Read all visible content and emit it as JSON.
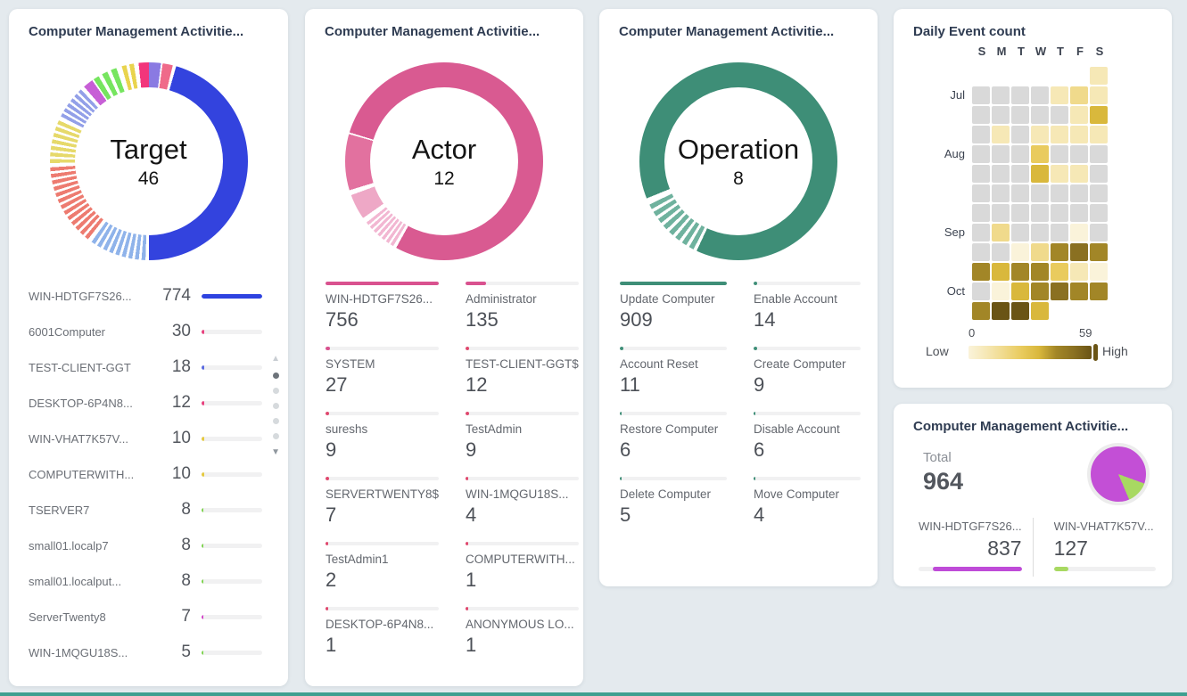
{
  "chart_data": [
    {
      "type": "pie",
      "title": "Computer Management Activitie...",
      "center_label": "Target",
      "distinct_count": 46,
      "categories": [
        "WIN-HDTGF7S26...",
        "6001Computer",
        "TEST-CLIENT-GGT",
        "DESKTOP-6P4N8...",
        "WIN-VHAT7K57V...",
        "COMPUTERWITH...",
        "TSERVER7",
        "small01.localp7",
        "small01.localput...",
        "ServerTwenty8",
        "WIN-1MQGU18S..."
      ],
      "values": [
        774,
        30,
        18,
        12,
        10,
        10,
        8,
        8,
        8,
        7,
        5
      ]
    },
    {
      "type": "pie",
      "title": "Computer Management Activitie...",
      "center_label": "Actor",
      "distinct_count": 12,
      "categories": [
        "WIN-HDTGF7S26...",
        "Administrator",
        "SYSTEM",
        "TEST-CLIENT-GGT$",
        "sureshs",
        "TestAdmin",
        "SERVERTWENTY8$",
        "WIN-1MQGU18S...",
        "TestAdmin1",
        "COMPUTERWITH...",
        "DESKTOP-6P4N8...",
        "ANONYMOUS LO..."
      ],
      "values": [
        756,
        135,
        27,
        12,
        9,
        9,
        7,
        4,
        2,
        1,
        1,
        1
      ]
    },
    {
      "type": "pie",
      "title": "Computer Management Activitie...",
      "center_label": "Operation",
      "distinct_count": 8,
      "categories": [
        "Update Computer",
        "Enable Account",
        "Account Reset",
        "Create Computer",
        "Restore Computer",
        "Disable Account",
        "Delete Computer",
        "Move Computer"
      ],
      "values": [
        909,
        14,
        11,
        9,
        6,
        6,
        5,
        4
      ]
    },
    {
      "type": "heatmap",
      "title": "Daily Event count",
      "x_labels": [
        "S",
        "M",
        "T",
        "W",
        "T",
        "F",
        "S"
      ],
      "y_labels": [
        "Jul",
        "Aug",
        "Sep",
        "Oct"
      ],
      "value_range": [
        0,
        59
      ],
      "legend": [
        "Low",
        "High"
      ],
      "grid": [
        [
          null,
          null,
          null,
          null,
          null,
          null,
          6
        ],
        [
          0,
          0,
          0,
          0,
          6,
          12,
          6
        ],
        [
          0,
          0,
          0,
          0,
          0,
          6,
          28
        ],
        [
          0,
          7,
          0,
          6,
          6,
          6,
          6
        ],
        [
          0,
          0,
          0,
          24,
          0,
          0,
          0
        ],
        [
          0,
          0,
          0,
          32,
          7,
          6,
          0
        ],
        [
          0,
          0,
          0,
          0,
          0,
          0,
          0
        ],
        [
          0,
          0,
          0,
          0,
          0,
          0,
          0
        ],
        [
          0,
          12,
          0,
          0,
          0,
          2,
          0
        ],
        [
          0,
          0,
          3,
          10,
          42,
          50,
          44
        ],
        [
          44,
          32,
          44,
          44,
          24,
          6,
          3
        ],
        [
          0,
          3,
          32,
          46,
          52,
          45,
          44
        ],
        [
          45,
          56,
          59,
          32,
          null,
          null,
          null
        ]
      ]
    },
    {
      "type": "pie",
      "title": "Computer Management Activitie...",
      "total": 964,
      "categories": [
        "WIN-HDTGF7S26...",
        "WIN-VHAT7K57V..."
      ],
      "values": [
        837,
        127
      ]
    }
  ],
  "theme": {
    "bg": "#e4eaee",
    "card": "#ffffff",
    "title_color": "#2f3c52",
    "accent_strip": "#3f9f90"
  },
  "cards": {
    "target": {
      "title": "Computer Management Activitie...",
      "donut": {
        "label": "Target",
        "count": "46",
        "bands": [
          {
            "from": 0,
            "to": 7,
            "color": "#8a7ae2"
          },
          {
            "from": 8,
            "to": 14,
            "color": "#ef6a8a"
          },
          {
            "from": 16,
            "to": 180,
            "color": "#3343de"
          },
          {
            "from": 182,
            "to": 217,
            "color": "#8fb3ea",
            "stripes": 9
          },
          {
            "from": 218,
            "to": 268,
            "color": "#ed7b70",
            "stripes": 13
          },
          {
            "from": 269,
            "to": 296,
            "color": "#e6d96a",
            "stripes": 7
          },
          {
            "from": 297,
            "to": 318,
            "color": "#93a0e8",
            "stripes": 6
          },
          {
            "from": 319,
            "to": 325,
            "color": "#c75fd6"
          },
          {
            "from": 326,
            "to": 343,
            "color": "#76e55f",
            "stripes": 3
          },
          {
            "from": 344,
            "to": 353,
            "color": "#e9d44e",
            "stripes": 2
          },
          {
            "from": 354,
            "to": 360,
            "color": "#f2357b"
          }
        ]
      },
      "rows": [
        {
          "label": "WIN-HDTGF7S26...",
          "value": "774",
          "pct": 100,
          "color": "#2e43e0"
        },
        {
          "label": "6001Computer",
          "value": "30",
          "pct": 5,
          "color": "#e8417e"
        },
        {
          "label": "TEST-CLIENT-GGT",
          "value": "18",
          "pct": 4,
          "color": "#5a6ae0"
        },
        {
          "label": "DESKTOP-6P4N8...",
          "value": "12",
          "pct": 4,
          "color": "#e8417e"
        },
        {
          "label": "WIN-VHAT7K57V...",
          "value": "10",
          "pct": 4,
          "color": "#e5c93f"
        },
        {
          "label": "COMPUTERWITH...",
          "value": "10",
          "pct": 4,
          "color": "#e5c93f"
        },
        {
          "label": "TSERVER7",
          "value": "8",
          "pct": 3,
          "color": "#7ed34f"
        },
        {
          "label": "small01.localp7",
          "value": "8",
          "pct": 3,
          "color": "#7ed34f"
        },
        {
          "label": "small01.localput...",
          "value": "8",
          "pct": 3,
          "color": "#7ed34f"
        },
        {
          "label": "ServerTwenty8",
          "value": "7",
          "pct": 3,
          "color": "#d343c8"
        },
        {
          "label": "WIN-1MQGU18S...",
          "value": "5",
          "pct": 3,
          "color": "#7ed34f"
        }
      ],
      "pager": {
        "dots": 5,
        "active": 0,
        "up": "▲",
        "down": "▼"
      }
    },
    "actor": {
      "title": "Computer Management Activitie...",
      "donut": {
        "label": "Actor",
        "count": "12",
        "bands": [
          {
            "from": 0,
            "to": 209,
            "color": "#d95a91"
          },
          {
            "from": 211,
            "to": 233,
            "color": "#f2b7d2",
            "stripes": 7
          },
          {
            "from": 235,
            "to": 250,
            "color": "#eea8c6"
          },
          {
            "from": 253,
            "to": 286,
            "color": "#e2719f"
          },
          {
            "from": 287,
            "to": 360,
            "color": "#d95a91"
          }
        ]
      },
      "items": [
        {
          "label": "WIN-HDTGF7S26...",
          "value": "756",
          "pct": 100,
          "color": "#d9528f"
        },
        {
          "label": "Administrator",
          "value": "135",
          "pct": 18,
          "color": "#d9528f"
        },
        {
          "label": "SYSTEM",
          "value": "27",
          "pct": 4,
          "color": "#d9528f"
        },
        {
          "label": "TEST-CLIENT-GGT$",
          "value": "12",
          "pct": 3,
          "color": "#e0476d"
        },
        {
          "label": "sureshs",
          "value": "9",
          "pct": 3,
          "color": "#e0476d"
        },
        {
          "label": "TestAdmin",
          "value": "9",
          "pct": 3,
          "color": "#e0476d"
        },
        {
          "label": "SERVERTWENTY8$",
          "value": "7",
          "pct": 3,
          "color": "#e0476d"
        },
        {
          "label": "WIN-1MQGU18S...",
          "value": "4",
          "pct": 2,
          "color": "#e0476d"
        },
        {
          "label": "TestAdmin1",
          "value": "2",
          "pct": 2,
          "color": "#e0476d"
        },
        {
          "label": "COMPUTERWITH...",
          "value": "1",
          "pct": 2,
          "color": "#e0476d"
        },
        {
          "label": "DESKTOP-6P4N8...",
          "value": "1",
          "pct": 2,
          "color": "#e0476d"
        },
        {
          "label": "ANONYMOUS LO...",
          "value": "1",
          "pct": 2,
          "color": "#e0476d"
        }
      ]
    },
    "operation": {
      "title": "Computer Management Activitie...",
      "donut": {
        "label": "Operation",
        "count": "8",
        "bands": [
          {
            "from": 0,
            "to": 205,
            "color": "#3e8e77"
          },
          {
            "from": 207,
            "to": 246,
            "color": "#6fb29e",
            "stripes": 8
          },
          {
            "from": 248,
            "to": 360,
            "color": "#3e8e77"
          }
        ]
      },
      "items": [
        {
          "label": "Update Computer",
          "value": "909",
          "pct": 100,
          "color": "#3e8e77"
        },
        {
          "label": "Enable Account",
          "value": "14",
          "pct": 3,
          "color": "#3e8e77"
        },
        {
          "label": "Account Reset",
          "value": "11",
          "pct": 3,
          "color": "#3e8e77"
        },
        {
          "label": "Create Computer",
          "value": "9",
          "pct": 3,
          "color": "#3e8e77"
        },
        {
          "label": "Restore Computer",
          "value": "6",
          "pct": 2,
          "color": "#3e8e77"
        },
        {
          "label": "Disable Account",
          "value": "6",
          "pct": 2,
          "color": "#3e8e77"
        },
        {
          "label": "Delete Computer",
          "value": "5",
          "pct": 2,
          "color": "#3e8e77"
        },
        {
          "label": "Move Computer",
          "value": "4",
          "pct": 2,
          "color": "#3e8e77"
        }
      ]
    },
    "daily": {
      "title": "Daily Event count",
      "days": [
        "S",
        "M",
        "T",
        "W",
        "T",
        "F",
        "S"
      ],
      "months": {
        "1": "Jul",
        "4": "Aug",
        "8": "Sep",
        "11": "Oct"
      },
      "scale": [
        {
          "max": 0,
          "color": "#d9d9d9"
        },
        {
          "max": 3,
          "color": "#faf3da"
        },
        {
          "max": 7,
          "color": "#f6e8b6"
        },
        {
          "max": 14,
          "color": "#f0da8c"
        },
        {
          "max": 25,
          "color": "#e9cb5e"
        },
        {
          "max": 35,
          "color": "#d9b83c"
        },
        {
          "max": 48,
          "color": "#a28627"
        },
        {
          "max": 54,
          "color": "#8a7021"
        },
        {
          "max": 59,
          "color": "#6a5415"
        }
      ],
      "legend": {
        "min": "0",
        "max": "59",
        "low": "Low",
        "high": "High"
      }
    },
    "total": {
      "title": "Computer Management Activitie...",
      "total_label": "Total",
      "total_value": "964",
      "pie": {
        "main": "#c34fd6",
        "slice": "#a8d962",
        "slice_from": 110,
        "slice_to": 157
      },
      "items": [
        {
          "label": "WIN-HDTGF7S26...",
          "value": "837",
          "pct": 86,
          "color": "#bf4bd8",
          "fill_align": "right",
          "value_align": "right"
        },
        {
          "label": "WIN-VHAT7K57V...",
          "value": "127",
          "pct": 14,
          "color": "#a8d962",
          "fill_align": "left",
          "value_align": "left"
        }
      ]
    }
  }
}
